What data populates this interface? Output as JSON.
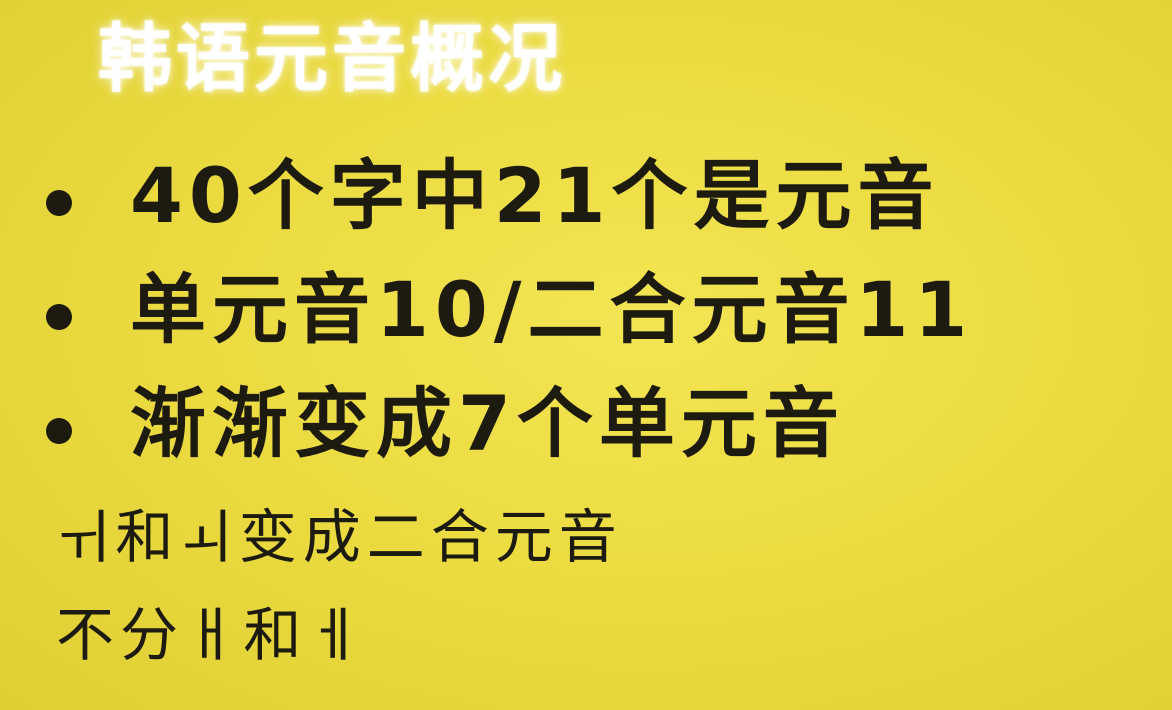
{
  "slide": {
    "title": "韩语元音概况",
    "bullets": [
      {
        "text": "40个字中21个是元音"
      },
      {
        "text": "单元音10/二合元音11"
      },
      {
        "text": "渐渐变成7个单元音"
      }
    ],
    "notes": [
      {
        "text": "ㅟ和ㅚ变成二合元音"
      },
      {
        "text": "不分ㅐ和ㅔ"
      }
    ]
  },
  "colors": {
    "background": "#ecdc42",
    "title": "#ffffff",
    "text": "#1d1a10"
  }
}
